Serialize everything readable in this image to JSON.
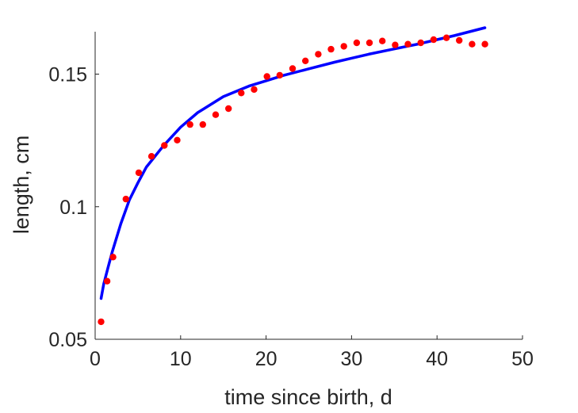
{
  "chart_data": {
    "type": "scatter",
    "xlabel": "time since birth, d",
    "ylabel": "length, cm",
    "xlim": [
      0,
      50
    ],
    "ylim": [
      0.05,
      0.166
    ],
    "x_ticks": [
      0,
      10,
      20,
      30,
      40,
      50
    ],
    "x_tick_labels": [
      "0",
      "10",
      "20",
      "30",
      "40",
      "50"
    ],
    "y_ticks": [
      0.05,
      0.1,
      0.15
    ],
    "y_tick_labels": [
      "0.05",
      "0.1",
      "0.15"
    ],
    "grid": false,
    "box": false,
    "series": [
      {
        "kind": "scatter",
        "color": "#ff0000",
        "x": [
          0.7,
          1.4,
          2.1,
          3.6,
          5.1,
          6.6,
          8.1,
          9.6,
          11.1,
          12.6,
          14.1,
          15.6,
          17.1,
          18.6,
          20.1,
          21.6,
          23.1,
          24.6,
          26.1,
          27.6,
          29.1,
          30.6,
          32.1,
          33.6,
          35.1,
          36.6,
          38.1,
          39.6,
          41.1,
          42.6,
          44.1,
          45.6
        ],
        "y": [
          0.0566,
          0.0719,
          0.081,
          0.1029,
          0.1128,
          0.119,
          0.1231,
          0.1251,
          0.131,
          0.131,
          0.1347,
          0.137,
          0.1429,
          0.1442,
          0.1491,
          0.1496,
          0.1521,
          0.155,
          0.1575,
          0.1594,
          0.1605,
          0.1618,
          0.1618,
          0.1625,
          0.161,
          0.1613,
          0.1618,
          0.163,
          0.1637,
          0.1627,
          0.1613,
          0.1613
        ]
      },
      {
        "kind": "line",
        "color": "#0000ff",
        "x": [
          0.7,
          1.0,
          1.5,
          2.0,
          3.0,
          4.0,
          5.0,
          6.0,
          8.0,
          10.0,
          12.0,
          15.0,
          18.0,
          20.0,
          22.0,
          25.0,
          28.0,
          30.0,
          32.0,
          35.0,
          38.0,
          40.0,
          42.0,
          45.6
        ],
        "y": [
          0.0654,
          0.0708,
          0.077,
          0.083,
          0.0935,
          0.1025,
          0.109,
          0.115,
          0.123,
          0.13,
          0.1355,
          0.1415,
          0.1455,
          0.1475,
          0.1495,
          0.152,
          0.1545,
          0.156,
          0.1575,
          0.1595,
          0.1615,
          0.163,
          0.1645,
          0.1675
        ]
      }
    ]
  }
}
